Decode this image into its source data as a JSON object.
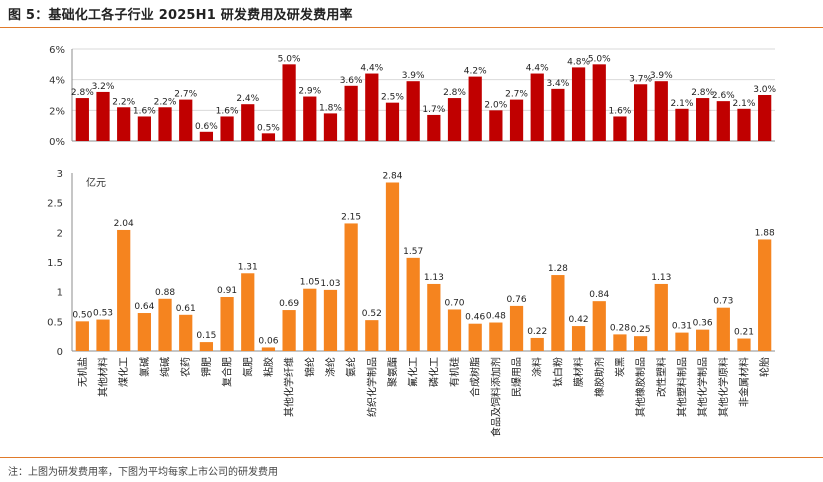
{
  "header": {
    "title": "图 5：基础化工各子行业 2025H1 研发费用及研发费用率"
  },
  "footer": {
    "note": "注：上图为研发费用率，下图为平均每家上市公司的研发费用"
  },
  "colors": {
    "top_bar": "#c00000",
    "bottom_bar": "#f5841f",
    "accent_rule": "#e07a2a",
    "grid": "#d9d9d9"
  },
  "chart_data": [
    {
      "type": "bar",
      "title": "",
      "ylabel": "",
      "ylim": [
        0,
        6
      ],
      "yticks": [
        "0%",
        "2%",
        "4%",
        "6%"
      ],
      "grid": true,
      "categories": [
        "无机盐",
        "其他材料",
        "煤化工",
        "氯碱",
        "纯碱",
        "农药",
        "钾肥",
        "复合肥",
        "氮肥",
        "粘胶",
        "其他化学纤维",
        "锦纶",
        "涤纶",
        "氨纶",
        "纺织化学制品",
        "聚氨酯",
        "氟化工",
        "磷化工",
        "有机硅",
        "合成树脂",
        "食品及饲料添加剂",
        "民爆用品",
        "涂料",
        "钛白粉",
        "膜材料",
        "橡胶助剂",
        "炭黑",
        "其他橡胶制品",
        "改性塑料",
        "其他塑料制品",
        "其他化学制品",
        "其他化学原料",
        "非金属材料",
        "轮胎"
      ],
      "values": [
        2.8,
        3.2,
        2.2,
        1.6,
        2.2,
        2.7,
        0.6,
        1.6,
        2.4,
        0.5,
        5.0,
        2.9,
        1.8,
        3.6,
        4.4,
        2.5,
        3.9,
        1.7,
        2.8,
        4.2,
        2.0,
        2.7,
        4.4,
        3.4,
        4.8,
        5.0,
        1.6,
        3.7,
        3.9,
        2.1,
        2.8,
        2.6,
        2.1,
        3.0
      ],
      "labels": [
        "2.8%",
        "3.2%",
        "2.2%",
        "1.6%",
        "2.2%",
        "2.7%",
        "0.6%",
        "1.6%",
        "2.4%",
        "0.5%",
        "5.0%",
        "2.9%",
        "1.8%",
        "3.6%",
        "4.4%",
        "2.5%",
        "3.9%",
        "1.7%",
        "2.8%",
        "4.2%",
        "2.0%",
        "2.7%",
        "4.4%",
        "3.4%",
        "4.8%",
        "5.0%",
        "1.6%",
        "3.7%",
        "3.9%",
        "2.1%",
        "2.8%",
        "2.6%",
        "2.1%",
        "3.0%"
      ]
    },
    {
      "type": "bar",
      "title": "",
      "ylabel": "亿元",
      "ylim": [
        0,
        3
      ],
      "yticks": [
        "0",
        "0.5",
        "1",
        "1.5",
        "2",
        "2.5",
        "3"
      ],
      "grid": false,
      "categories": [
        "无机盐",
        "其他材料",
        "煤化工",
        "氯碱",
        "纯碱",
        "农药",
        "钾肥",
        "复合肥",
        "氮肥",
        "粘胶",
        "其他化学纤维",
        "锦纶",
        "涤纶",
        "氨纶",
        "纺织化学制品",
        "聚氨酯",
        "氟化工",
        "磷化工",
        "有机硅",
        "合成树脂",
        "食品及饲料添加剂",
        "民爆用品",
        "涂料",
        "钛白粉",
        "膜材料",
        "橡胶助剂",
        "炭黑",
        "其他橡胶制品",
        "改性塑料",
        "其他塑料制品",
        "其他化学制品",
        "其他化学原料",
        "非金属材料",
        "轮胎"
      ],
      "values": [
        0.5,
        0.53,
        2.04,
        0.64,
        0.88,
        0.61,
        0.15,
        0.91,
        1.31,
        0.06,
        0.69,
        1.05,
        1.03,
        2.15,
        0.52,
        2.84,
        1.57,
        1.13,
        0.7,
        0.46,
        0.48,
        0.76,
        0.22,
        1.28,
        0.42,
        0.84,
        0.28,
        0.25,
        1.13,
        0.31,
        0.36,
        0.73,
        0.21,
        1.88
      ],
      "labels": [
        "0.50",
        "0.53",
        "2.04",
        "0.64",
        "0.88",
        "0.61",
        "0.15",
        "0.91",
        "1.31",
        "0.06",
        "0.69",
        "1.05",
        "1.03",
        "2.15",
        "0.52",
        "2.84",
        "1.57",
        "1.13",
        "0.70",
        "0.46",
        "0.48",
        "0.76",
        "0.22",
        "1.28",
        "0.42",
        "0.84",
        "0.28",
        "0.25",
        "1.13",
        "0.31",
        "0.36",
        "0.73",
        "0.21",
        "1.88"
      ]
    }
  ]
}
